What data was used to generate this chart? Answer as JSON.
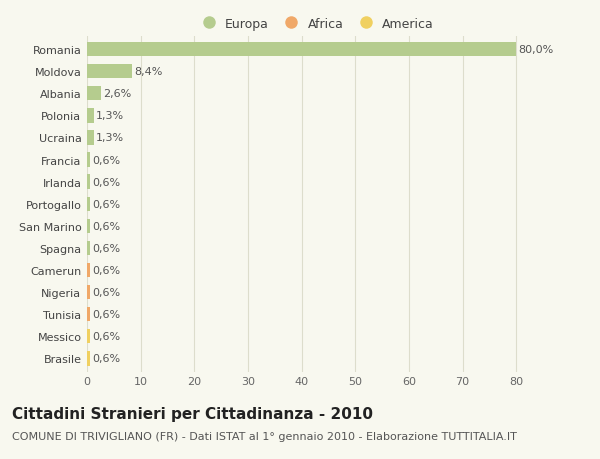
{
  "countries": [
    "Romania",
    "Moldova",
    "Albania",
    "Polonia",
    "Ucraina",
    "Francia",
    "Irlanda",
    "Portogallo",
    "San Marino",
    "Spagna",
    "Camerun",
    "Nigeria",
    "Tunisia",
    "Messico",
    "Brasile"
  ],
  "values": [
    80.0,
    8.4,
    2.6,
    1.3,
    1.3,
    0.6,
    0.6,
    0.6,
    0.6,
    0.6,
    0.6,
    0.6,
    0.6,
    0.6,
    0.6
  ],
  "labels": [
    "80,0%",
    "8,4%",
    "2,6%",
    "1,3%",
    "1,3%",
    "0,6%",
    "0,6%",
    "0,6%",
    "0,6%",
    "0,6%",
    "0,6%",
    "0,6%",
    "0,6%",
    "0,6%",
    "0,6%"
  ],
  "categories": [
    "Europa",
    "Europa",
    "Europa",
    "Europa",
    "Europa",
    "Europa",
    "Europa",
    "Europa",
    "Europa",
    "Europa",
    "Africa",
    "Africa",
    "Africa",
    "America",
    "America"
  ],
  "colors": {
    "Europa": "#b5cc8e",
    "Africa": "#f0a868",
    "America": "#f0d060"
  },
  "legend": [
    "Europa",
    "Africa",
    "America"
  ],
  "legend_colors": [
    "#b5cc8e",
    "#f0a868",
    "#f0d060"
  ],
  "title": "Cittadini Stranieri per Cittadinanza - 2010",
  "subtitle": "COMUNE DI TRIVIGLIANO (FR) - Dati ISTAT al 1° gennaio 2010 - Elaborazione TUTTITALIA.IT",
  "xlim": [
    0,
    85
  ],
  "xticks": [
    0,
    10,
    20,
    30,
    40,
    50,
    60,
    70,
    80
  ],
  "background_color": "#f8f8ef",
  "grid_color": "#ddddcc",
  "bar_height": 0.65,
  "title_fontsize": 11,
  "subtitle_fontsize": 8,
  "label_fontsize": 8,
  "tick_fontsize": 8,
  "legend_fontsize": 9
}
